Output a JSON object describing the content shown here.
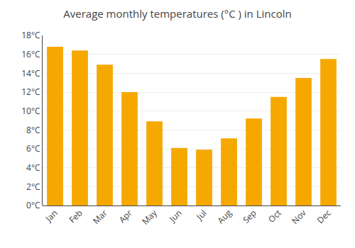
{
  "chart_data": {
    "type": "bar",
    "title": "Average monthly temperatures (°C ) in Lincoln",
    "categories": [
      "Jan",
      "Feb",
      "Mar",
      "Apr",
      "May",
      "Jun",
      "Jul",
      "Aug",
      "Sep",
      "Oct",
      "Nov",
      "Dec"
    ],
    "values": [
      16.8,
      16.4,
      14.9,
      12.0,
      8.9,
      6.1,
      5.9,
      7.1,
      9.2,
      11.5,
      13.5,
      15.5
    ],
    "color": "#F5A800",
    "ylim": [
      0,
      18
    ],
    "yticks": [
      {
        "value": 0,
        "label": "0°C"
      },
      {
        "value": 2,
        "label": "2°C"
      },
      {
        "value": 4,
        "label": "4°C"
      },
      {
        "value": 6,
        "label": "6°C"
      },
      {
        "value": 8,
        "label": "8°C"
      },
      {
        "value": 10,
        "label": "10°C"
      },
      {
        "value": 12,
        "label": "12°C"
      },
      {
        "value": 14,
        "label": "14°C"
      },
      {
        "value": 16,
        "label": "16°C"
      },
      {
        "value": 18,
        "label": "18°C"
      }
    ],
    "grid": true
  }
}
